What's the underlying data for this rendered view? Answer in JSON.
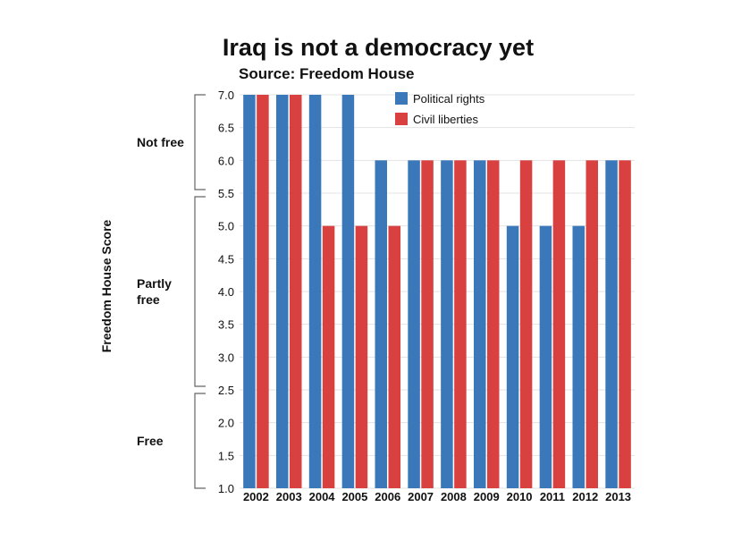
{
  "chart_data": {
    "type": "bar",
    "title": "Iraq is not a democracy yet",
    "subtitle": "Source: Freedom House",
    "ylabel": "Freedom House Score",
    "xlabel": "",
    "ylim": [
      1.0,
      7.0
    ],
    "yticks": [
      "1.0",
      "1.5",
      "2.0",
      "2.5",
      "3.0",
      "3.5",
      "4.0",
      "4.5",
      "5.0",
      "5.5",
      "6.0",
      "6.5",
      "7.0"
    ],
    "categories": [
      "2002",
      "2003",
      "2004",
      "2005",
      "2006",
      "2007",
      "2008",
      "2009",
      "2010",
      "2011",
      "2012",
      "2013"
    ],
    "series": [
      {
        "name": "Political rights",
        "color": "#3a78b9",
        "values": [
          7,
          7,
          7,
          7,
          6,
          6,
          6,
          6,
          5,
          5,
          5,
          6
        ]
      },
      {
        "name": "Civil liberties",
        "color": "#d94040",
        "values": [
          7,
          7,
          5,
          5,
          5,
          6,
          6,
          6,
          6,
          6,
          6,
          6
        ]
      }
    ],
    "bands": [
      {
        "label": "Not free",
        "range": [
          5.5,
          7.0
        ]
      },
      {
        "label": "Partly free",
        "range": [
          2.5,
          5.5
        ]
      },
      {
        "label": "Free",
        "range": [
          1.0,
          2.5
        ]
      }
    ],
    "legend_position": "top"
  }
}
